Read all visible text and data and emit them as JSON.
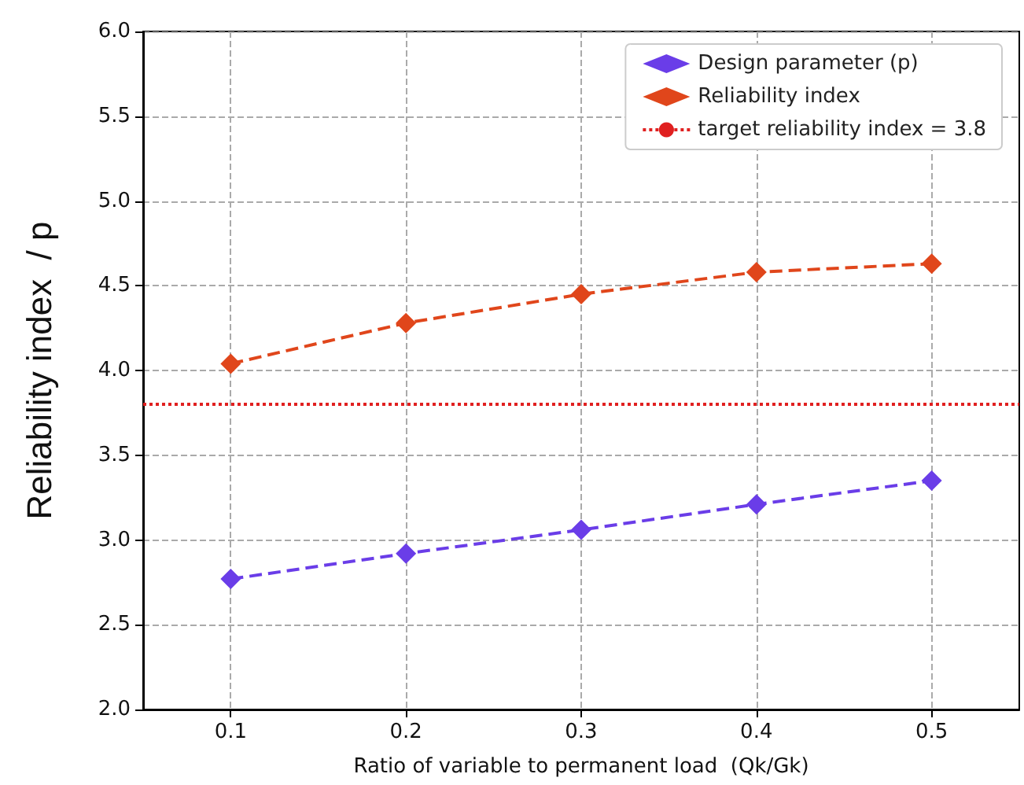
{
  "chart_data": {
    "type": "line",
    "xlabel": "Ratio of variable to permanent load  (Qk/Gk)",
    "ylabel": "Reliability index  / p",
    "x": [
      0.1,
      0.2,
      0.3,
      0.4,
      0.5
    ],
    "series": [
      {
        "name": "Design parameter (p)",
        "color": "#6a3de8",
        "values": [
          2.77,
          2.92,
          3.06,
          3.21,
          3.35
        ]
      },
      {
        "name": "Reliability index",
        "color": "#e0461b",
        "values": [
          4.04,
          4.28,
          4.45,
          4.58,
          4.63
        ]
      }
    ],
    "ref_lines": [
      {
        "axis": "y",
        "value": 3.8,
        "label": "target reliability index = 3.8",
        "color": "#e02020",
        "line_style": "dotted"
      }
    ],
    "xlim": [
      0.05,
      0.55
    ],
    "xticks": [
      0.1,
      0.2,
      0.3,
      0.4,
      0.5
    ],
    "ylim": [
      2.0,
      6.0
    ],
    "yticks": [
      {
        "value": 2,
        "label": "2.0"
      },
      2.5,
      {
        "value": 3,
        "label": "3.0"
      },
      3.5,
      {
        "value": 4,
        "label": "4.0"
      },
      4.5,
      {
        "value": 5,
        "label": "5.0"
      },
      5.5,
      {
        "value": 6,
        "label": "6.0"
      }
    ],
    "grid": true,
    "legend": "top right",
    "marker": "diamond",
    "line_style": "dashed"
  }
}
